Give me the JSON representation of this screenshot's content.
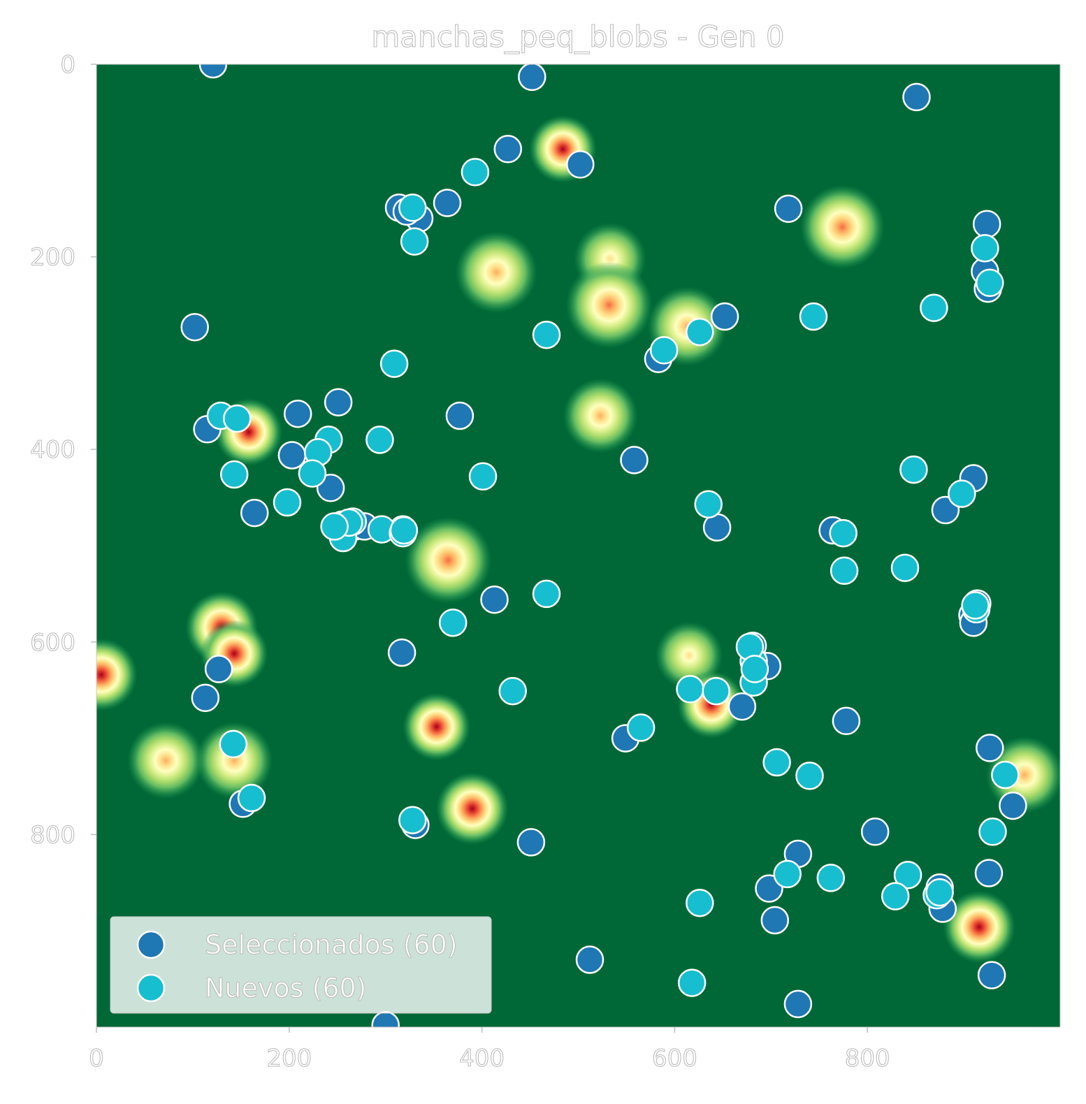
{
  "chart_data": {
    "type": "scatter",
    "title": "manchas_peq_blobs - Gen 0",
    "xlabel": "",
    "ylabel": "",
    "xlim": [
      0,
      1000
    ],
    "ylim": [
      1000,
      0
    ],
    "y_inverted": true,
    "x_ticks": [
      "0",
      "200",
      "400",
      "600",
      "800"
    ],
    "x_tick_values": [
      0,
      200,
      400,
      600,
      800
    ],
    "y_ticks": [
      "0",
      "200",
      "400",
      "600",
      "800"
    ],
    "y_tick_values": [
      0,
      200,
      400,
      600,
      800
    ],
    "grid": false,
    "legend_position": "lower-left",
    "background": {
      "kind": "heatmap",
      "colormap": "RdYlGn_r",
      "base_color": "#006837",
      "blobs": [
        {
          "x": 484,
          "y": 88,
          "level": 1.0
        },
        {
          "x": 774,
          "y": 169,
          "level": 0.55
        },
        {
          "x": 415,
          "y": 216,
          "level": 0.5
        },
        {
          "x": 533,
          "y": 202,
          "level": 0.3
        },
        {
          "x": 532,
          "y": 250,
          "level": 0.6
        },
        {
          "x": 613,
          "y": 272,
          "level": 0.45
        },
        {
          "x": 523,
          "y": 365,
          "level": 0.35
        },
        {
          "x": 158,
          "y": 382,
          "level": 1.0
        },
        {
          "x": 365,
          "y": 515,
          "level": 0.6
        },
        {
          "x": 130,
          "y": 585,
          "level": 0.9
        },
        {
          "x": 143,
          "y": 612,
          "level": 1.0
        },
        {
          "x": 615,
          "y": 614,
          "level": 0.2
        },
        {
          "x": 5,
          "y": 634,
          "level": 0.9
        },
        {
          "x": 638,
          "y": 665,
          "level": 1.0
        },
        {
          "x": 353,
          "y": 688,
          "level": 1.0
        },
        {
          "x": 72,
          "y": 723,
          "level": 0.4
        },
        {
          "x": 143,
          "y": 723,
          "level": 0.4
        },
        {
          "x": 390,
          "y": 773,
          "level": 0.9
        },
        {
          "x": 963,
          "y": 738,
          "level": 0.4
        },
        {
          "x": 916,
          "y": 896,
          "level": 0.9
        }
      ]
    },
    "series": [
      {
        "name": "Seleccionados (60)",
        "color": "#1f77b4",
        "points": [
          [
            121,
            0
          ],
          [
            452,
            13
          ],
          [
            851,
            34
          ],
          [
            427,
            88
          ],
          [
            502,
            104
          ],
          [
            364,
            144
          ],
          [
            314,
            149
          ],
          [
            335,
            160
          ],
          [
            718,
            150
          ],
          [
            924,
            166
          ],
          [
            922,
            215
          ],
          [
            925,
            233
          ],
          [
            102,
            273
          ],
          [
            652,
            262
          ],
          [
            583,
            306
          ],
          [
            251,
            351
          ],
          [
            209,
            363
          ],
          [
            377,
            365
          ],
          [
            115,
            379
          ],
          [
            203,
            406
          ],
          [
            243,
            440
          ],
          [
            558,
            411
          ],
          [
            910,
            430
          ],
          [
            881,
            463
          ],
          [
            164,
            466
          ],
          [
            255,
            478
          ],
          [
            268,
            480
          ],
          [
            278,
            480
          ],
          [
            318,
            483
          ],
          [
            644,
            481
          ],
          [
            764,
            484
          ],
          [
            413,
            556
          ],
          [
            914,
            560
          ],
          [
            909,
            572
          ],
          [
            910,
            580
          ],
          [
            317,
            611
          ],
          [
            681,
            604
          ],
          [
            696,
            625
          ],
          [
            127,
            628
          ],
          [
            113,
            658
          ],
          [
            670,
            667
          ],
          [
            778,
            682
          ],
          [
            549,
            700
          ],
          [
            927,
            710
          ],
          [
            951,
            770
          ],
          [
            152,
            768
          ],
          [
            331,
            790
          ],
          [
            451,
            808
          ],
          [
            808,
            797
          ],
          [
            728,
            820
          ],
          [
            926,
            840
          ],
          [
            698,
            856
          ],
          [
            875,
            855
          ],
          [
            878,
            877
          ],
          [
            704,
            889
          ],
          [
            512,
            930
          ],
          [
            929,
            946
          ],
          [
            728,
            976
          ],
          [
            300,
            998
          ],
          [
            322,
            153
          ]
        ]
      },
      {
        "name": "Nuevos (60)",
        "color": "#17becf",
        "points": [
          [
            393,
            112
          ],
          [
            328,
            149
          ],
          [
            330,
            184
          ],
          [
            922,
            191
          ],
          [
            927,
            227
          ],
          [
            869,
            253
          ],
          [
            744,
            262
          ],
          [
            467,
            281
          ],
          [
            626,
            278
          ],
          [
            589,
            297
          ],
          [
            309,
            311
          ],
          [
            129,
            365
          ],
          [
            146,
            368
          ],
          [
            294,
            390
          ],
          [
            241,
            390
          ],
          [
            230,
            403
          ],
          [
            143,
            426
          ],
          [
            224,
            425
          ],
          [
            401,
            428
          ],
          [
            848,
            421
          ],
          [
            198,
            455
          ],
          [
            635,
            457
          ],
          [
            898,
            446
          ],
          [
            266,
            475
          ],
          [
            256,
            492
          ],
          [
            296,
            483
          ],
          [
            318,
            487
          ],
          [
            775,
            487
          ],
          [
            776,
            526
          ],
          [
            839,
            523
          ],
          [
            467,
            550
          ],
          [
            913,
            566
          ],
          [
            370,
            580
          ],
          [
            682,
            620
          ],
          [
            616,
            649
          ],
          [
            643,
            651
          ],
          [
            682,
            642
          ],
          [
            432,
            651
          ],
          [
            565,
            689
          ],
          [
            142,
            706
          ],
          [
            706,
            725
          ],
          [
            740,
            739
          ],
          [
            943,
            738
          ],
          [
            161,
            762
          ],
          [
            328,
            785
          ],
          [
            930,
            797
          ],
          [
            842,
            842
          ],
          [
            717,
            841
          ],
          [
            762,
            845
          ],
          [
            829,
            864
          ],
          [
            872,
            863
          ],
          [
            626,
            871
          ],
          [
            618,
            954
          ],
          [
            262,
            476
          ],
          [
            247,
            480
          ],
          [
            319,
            484
          ],
          [
            912,
            562
          ],
          [
            678,
            605
          ],
          [
            683,
            628
          ],
          [
            875,
            860
          ]
        ]
      }
    ]
  }
}
